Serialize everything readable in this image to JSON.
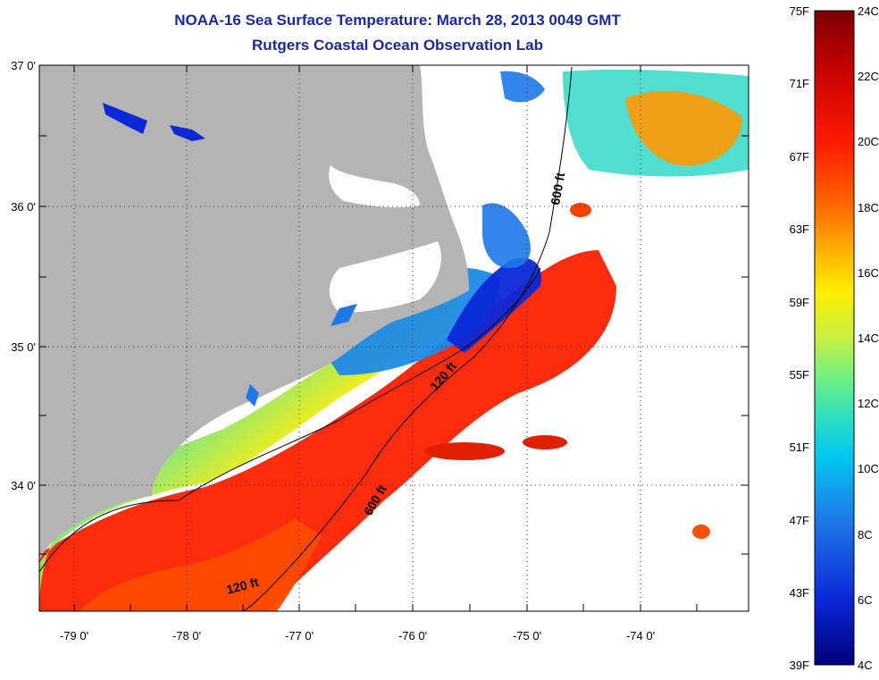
{
  "title": "NOAA-16 Sea Surface Temperature:  March 28, 2013 0049 GMT",
  "subtitle": "Rutgers Coastal Ocean Observation Lab",
  "map": {
    "latitude_labels": [
      "37 0'",
      "36 0'",
      "35 0'",
      "34 0'"
    ],
    "longitude_labels": [
      "-79 0'",
      "-78 0'",
      "-77 0'",
      "-76 0'",
      "-75 0'",
      "-74 0'"
    ],
    "contour_labels": [
      "600 ft",
      "120 ft",
      "600 ft",
      "120 ft"
    ],
    "land_color": "#b4b4b4",
    "grid": "dotted"
  },
  "colorbar": {
    "fahrenheit": [
      "75F",
      "71F",
      "67F",
      "63F",
      "59F",
      "55F",
      "51F",
      "47F",
      "43F",
      "39F"
    ],
    "celsius": [
      "24C",
      "22C",
      "20C",
      "18C",
      "16C",
      "14C",
      "12C",
      "10C",
      "8C",
      "6C",
      "4C"
    ],
    "colors": [
      "#7a0000",
      "#c00000",
      "#ff1a00",
      "#ff6a00",
      "#ffb400",
      "#ffee00",
      "#c8f040",
      "#70f080",
      "#30e0c0",
      "#00c8f0",
      "#1e78e8",
      "#0a28d8",
      "#00007a"
    ]
  }
}
